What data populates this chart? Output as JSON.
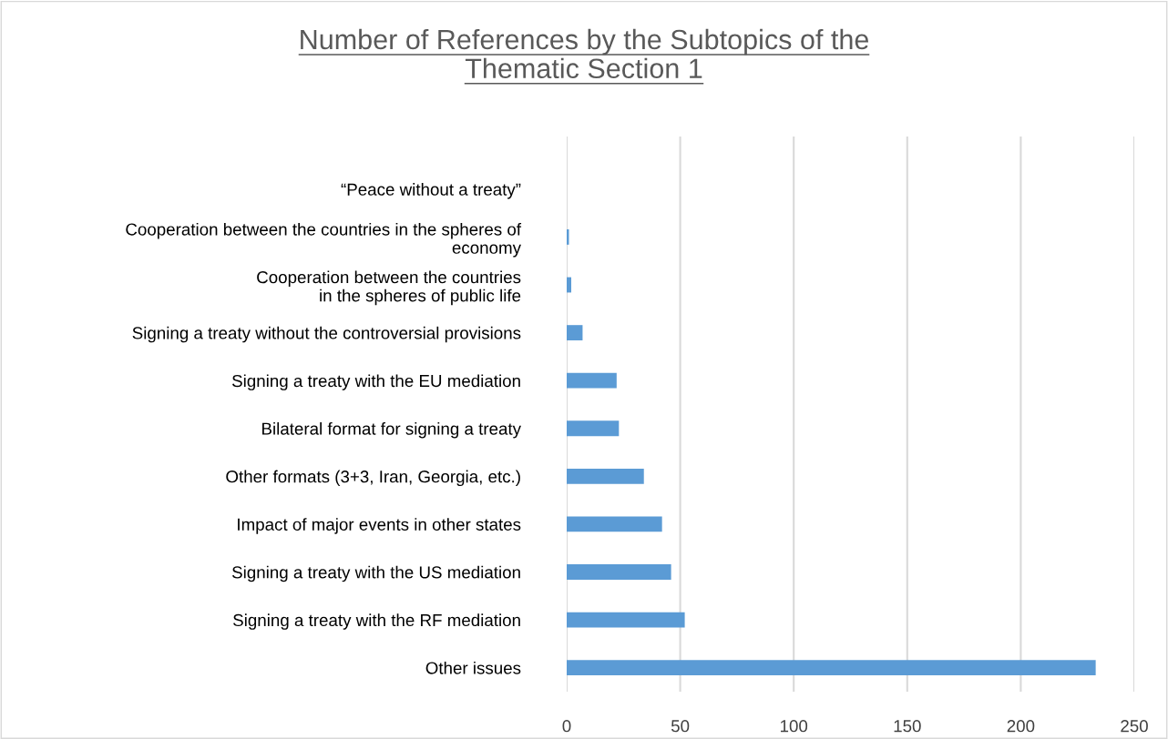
{
  "chart_data": {
    "type": "bar",
    "orientation": "horizontal",
    "title": "Number of References by the Subtopics of the\nThematic Section 1",
    "categories": [
      "“Peace without a treaty”",
      "Cooperation between the countries in the spheres of\neconomy",
      "Cooperation between the countries\nin the spheres of public life",
      "Signing a treaty without the controversial provisions",
      "Signing a treaty with the EU mediation",
      "Bilateral format for signing a treaty",
      "Other formats (3+3, Iran, Georgia, etc.)",
      "Impact of major events in other states",
      "Signing a treaty with the US mediation",
      "Signing a treaty with the RF mediation",
      "Other issues"
    ],
    "values": [
      0,
      1,
      2,
      7,
      22,
      23,
      34,
      42,
      46,
      52,
      233
    ],
    "color": "#5b9bd5",
    "xlim": [
      0,
      250
    ],
    "xticks": [
      0,
      50,
      100,
      150,
      200,
      250
    ],
    "grid": "x",
    "legend": false
  }
}
